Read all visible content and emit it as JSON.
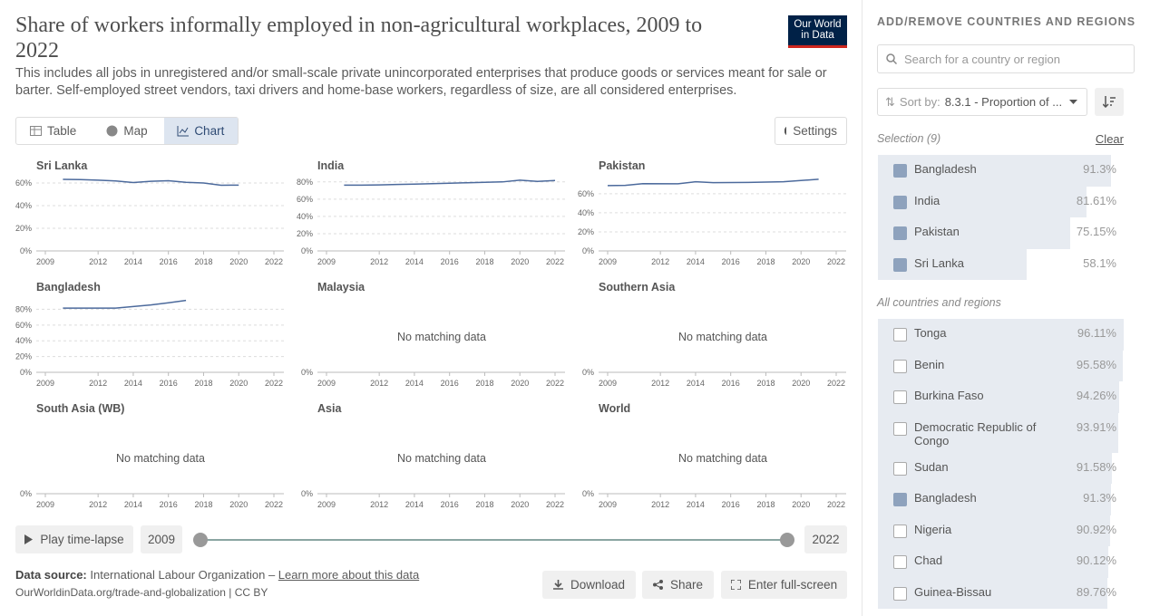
{
  "header": {
    "title": "Share of workers informally employed in non-agricultural workplaces, 2009 to 2022",
    "subtitle": "This includes all jobs in unregistered and/or small-scale private unincorporated enterprises that produce goods or services meant for sale or barter. Self-employed street vendors, taxi drivers and home-base workers, regardless of size, are all considered enterprises.",
    "logo": [
      "Our World",
      "in Data"
    ]
  },
  "tabs": [
    "Table",
    "Map",
    "Chart"
  ],
  "settings": "Settings",
  "chart_data": [
    {
      "type": "line",
      "title": "Sri Lanka",
      "x": [
        2010,
        2011,
        2012,
        2013,
        2014,
        2015,
        2016,
        2017,
        2018,
        2019,
        2020
      ],
      "values": [
        63.2,
        63,
        62.5,
        61.8,
        60.4,
        61.5,
        62,
        60.6,
        60,
        58,
        58.1
      ],
      "color": "#4c6a9c",
      "xlim": [
        2009,
        2022
      ],
      "ylim": [
        0,
        64
      ],
      "xticks": [
        2009,
        2012,
        2014,
        2016,
        2018,
        2020,
        2022
      ],
      "yticks": [
        {
          "value": 0,
          "label": "0%"
        },
        {
          "value": 20,
          "label": "20%"
        },
        {
          "value": 40,
          "label": "40%"
        },
        {
          "value": 60,
          "label": "60%"
        }
      ],
      "grid": true
    },
    {
      "type": "line",
      "title": "India",
      "x": [
        2010,
        2011,
        2012,
        2013,
        2014,
        2015,
        2016,
        2017,
        2018,
        2019,
        2020,
        2021,
        2022
      ],
      "values": [
        76.2,
        76.3,
        76.5,
        77,
        77.5,
        78,
        78.5,
        79,
        79.6,
        80,
        82,
        80.6,
        81.61
      ],
      "color": "#4c6a9c",
      "xlim": [
        2009,
        2022
      ],
      "ylim": [
        0,
        84
      ],
      "xticks": [
        2009,
        2012,
        2014,
        2016,
        2018,
        2020,
        2022
      ],
      "yticks": [
        {
          "value": 0,
          "label": "0%"
        },
        {
          "value": 20,
          "label": "20%"
        },
        {
          "value": 40,
          "label": "40%"
        },
        {
          "value": 60,
          "label": "60%"
        },
        {
          "value": 80,
          "label": "80%"
        }
      ],
      "grid": true
    },
    {
      "type": "line",
      "title": "Pakistan",
      "x": [
        2009,
        2010,
        2011,
        2013,
        2014,
        2015,
        2017,
        2018,
        2019,
        2021
      ],
      "values": [
        68.5,
        68.8,
        70.5,
        70.4,
        72.5,
        71.6,
        71.8,
        72.2,
        72.5,
        75.15
      ],
      "color": "#4c6a9c",
      "xlim": [
        2009,
        2022
      ],
      "ylim": [
        0,
        76
      ],
      "xticks": [
        2009,
        2012,
        2014,
        2016,
        2018,
        2020,
        2022
      ],
      "yticks": [
        {
          "value": 0,
          "label": "0%"
        },
        {
          "value": 20,
          "label": "20%"
        },
        {
          "value": 40,
          "label": "40%"
        },
        {
          "value": 60,
          "label": "60%"
        }
      ],
      "grid": true
    },
    {
      "type": "line",
      "title": "Bangladesh",
      "x": [
        2010,
        2013,
        2015,
        2016,
        2017
      ],
      "values": [
        81.5,
        81.5,
        85.5,
        88.3,
        91.3
      ],
      "color": "#4c6a9c",
      "xlim": [
        2009,
        2022
      ],
      "ylim": [
        0,
        92
      ],
      "xticks": [
        2009,
        2012,
        2014,
        2016,
        2018,
        2020,
        2022
      ],
      "yticks": [
        {
          "value": 0,
          "label": "0%"
        },
        {
          "value": 20,
          "label": "20%"
        },
        {
          "value": 40,
          "label": "40%"
        },
        {
          "value": 60,
          "label": "60%"
        },
        {
          "value": 80,
          "label": "80%"
        }
      ],
      "grid": true
    },
    {
      "type": "line",
      "title": "Malaysia",
      "note": "No matching data",
      "xlim": [
        2009,
        2022
      ],
      "xticks": [
        2009,
        2012,
        2014,
        2016,
        2018,
        2020,
        2022
      ],
      "yticks": [
        {
          "value": 0,
          "label": "0%"
        }
      ],
      "grid": true
    },
    {
      "type": "line",
      "title": "Southern Asia",
      "note": "No matching data",
      "xlim": [
        2009,
        2022
      ],
      "xticks": [
        2009,
        2012,
        2014,
        2016,
        2018,
        2020,
        2022
      ],
      "yticks": [
        {
          "value": 0,
          "label": "0%"
        }
      ],
      "grid": true
    },
    {
      "type": "line",
      "title": "South Asia (WB)",
      "note": "No matching data",
      "xlim": [
        2009,
        2022
      ],
      "xticks": [
        2009,
        2012,
        2014,
        2016,
        2018,
        2020,
        2022
      ],
      "yticks": [
        {
          "value": 0,
          "label": "0%"
        }
      ],
      "grid": true
    },
    {
      "type": "line",
      "title": "Asia",
      "note": "No matching data",
      "xlim": [
        2009,
        2022
      ],
      "xticks": [
        2009,
        2012,
        2014,
        2016,
        2018,
        2020,
        2022
      ],
      "yticks": [
        {
          "value": 0,
          "label": "0%"
        }
      ],
      "grid": true
    },
    {
      "type": "line",
      "title": "World",
      "note": "No matching data",
      "xlim": [
        2009,
        2022
      ],
      "xticks": [
        2009,
        2012,
        2014,
        2016,
        2018,
        2020,
        2022
      ],
      "yticks": [
        {
          "value": 0,
          "label": "0%"
        }
      ],
      "grid": true
    }
  ],
  "timeline": {
    "play": "Play time-lapse",
    "start": "2009",
    "end": "2022"
  },
  "footer": {
    "source_label": "Data source:",
    "source": "International Labour Organization – ",
    "link": "Learn more about this data",
    "url": "OurWorldinData.org/trade-and-globalization | CC BY",
    "buttons": [
      "Download",
      "Share",
      "Enter full-screen"
    ]
  },
  "sidebar": {
    "heading": "ADD/REMOVE COUNTRIES AND REGIONS",
    "search": "Search for a country or region",
    "sort_label": "Sort by:",
    "sort_value": "8.3.1 - Proportion of ...",
    "selection_label": "Selection (9)",
    "clear": "Clear",
    "all_label": "All countries and regions",
    "selected": [
      {
        "name": "Bangladesh",
        "value": 91.3,
        "value_label": "91.3%",
        "checked": true
      },
      {
        "name": "India",
        "value": 81.61,
        "value_label": "81.61%",
        "checked": true
      },
      {
        "name": "Pakistan",
        "value": 75.15,
        "value_label": "75.15%",
        "checked": true
      },
      {
        "name": "Sri Lanka",
        "value": 58.1,
        "value_label": "58.1%",
        "checked": true
      }
    ],
    "all": [
      {
        "name": "Tonga",
        "value": 96.11,
        "value_label": "96.11%",
        "checked": false
      },
      {
        "name": "Benin",
        "value": 95.58,
        "value_label": "95.58%",
        "checked": false
      },
      {
        "name": "Burkina Faso",
        "value": 94.26,
        "value_label": "94.26%",
        "checked": false
      },
      {
        "name": "Democratic Republic of Congo",
        "value": 93.91,
        "value_label": "93.91%",
        "checked": false
      },
      {
        "name": "Sudan",
        "value": 91.58,
        "value_label": "91.58%",
        "checked": false
      },
      {
        "name": "Bangladesh",
        "value": 91.3,
        "value_label": "91.3%",
        "checked": true
      },
      {
        "name": "Nigeria",
        "value": 90.92,
        "value_label": "90.92%",
        "checked": false
      },
      {
        "name": "Chad",
        "value": 90.12,
        "value_label": "90.12%",
        "checked": false
      },
      {
        "name": "Guinea-Bissau",
        "value": 89.76,
        "value_label": "89.76%",
        "checked": false
      }
    ]
  }
}
